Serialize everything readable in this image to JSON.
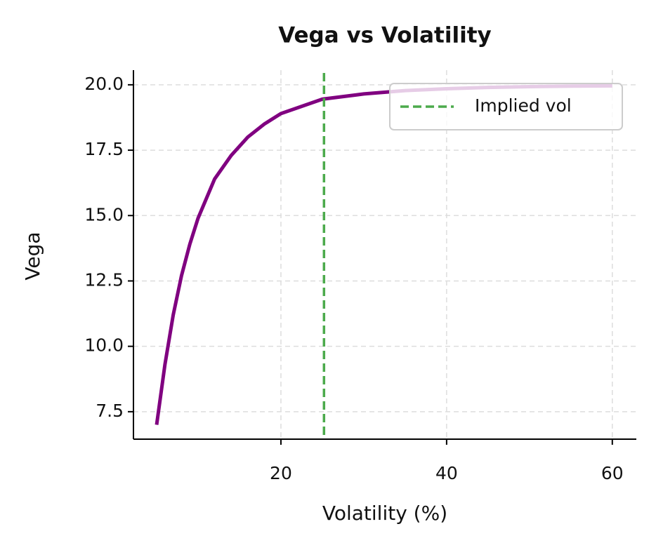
{
  "chart_data": {
    "type": "line",
    "title": "Vega vs Volatility",
    "x_label": "Volatility (%)",
    "y_label": "Vega",
    "x": [
      5,
      6,
      7,
      8,
      9,
      10,
      12,
      14,
      16,
      18,
      20,
      25,
      30,
      35,
      40,
      45,
      50,
      55,
      60
    ],
    "series": [
      {
        "color": "#800080",
        "values": [
          7.0,
          9.3,
          11.2,
          12.7,
          13.9,
          14.9,
          16.4,
          17.3,
          18.0,
          18.5,
          18.9,
          19.45,
          19.65,
          19.78,
          19.85,
          19.9,
          19.93,
          19.95,
          19.96
        ]
      }
    ],
    "vline": {
      "x": 25.2,
      "name": "Implied vol",
      "color": "#4caa4c"
    },
    "xlim": [
      2.2,
      62.9
    ],
    "ylim": [
      6.45,
      20.56
    ],
    "xticks": [
      20,
      40,
      60
    ],
    "yticks": [
      {
        "value": 7.5,
        "label": "7.5"
      },
      {
        "value": 10,
        "label": "10.0"
      },
      {
        "value": 12.5,
        "label": "12.5"
      },
      {
        "value": 15,
        "label": "15.0"
      },
      {
        "value": 17.5,
        "label": "17.5"
      },
      {
        "value": 20,
        "label": "20.0"
      }
    ],
    "grid": true,
    "legend": "upper right"
  }
}
